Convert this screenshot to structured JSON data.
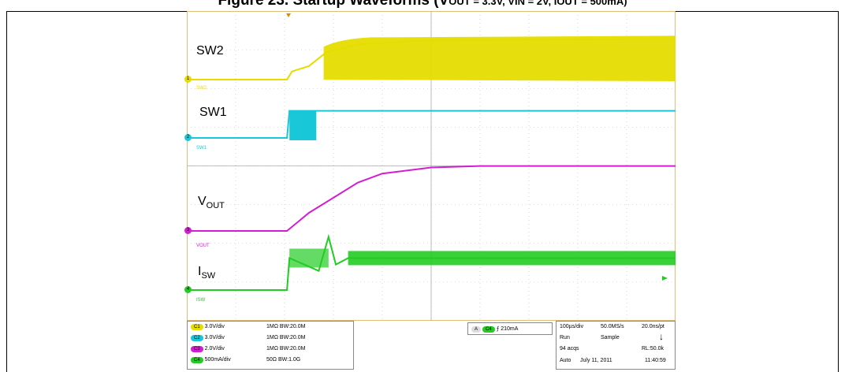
{
  "caption": "Figure 23. Startup Waveforms (V",
  "caption_rest": "OUT = 3.3V, VIN = 2V, IOUT = 500mA)",
  "chart_data": {
    "type": "line",
    "title": "",
    "xlabel": "",
    "ylabel": "",
    "time_div": "100µs/div",
    "x_divisions": 10,
    "y_divisions": 8,
    "grid": true,
    "series": [
      {
        "name": "SW2",
        "color": "#e6dc00",
        "scale": "3.0V/div",
        "label": "SW2",
        "t": [
          0,
          2.05,
          2.15,
          2.5,
          2.85,
          3.5,
          5,
          10
        ],
        "v_div": [
          0,
          0,
          0.3,
          0.5,
          1.0,
          1.3,
          1.45,
          1.5
        ],
        "burst_from": 2.8
      },
      {
        "name": "SW1",
        "color": "#19c8d8",
        "scale": "3.0V/div",
        "label": "SW1",
        "t": [
          0,
          2.05,
          2.1,
          2.6,
          2.65,
          10
        ],
        "v_div": [
          0,
          0,
          1.0,
          1.0,
          1.0,
          1.0
        ],
        "burst_from": 2.1,
        "burst_to": 2.65
      },
      {
        "name": "VOUT",
        "color": "#d21ed2",
        "scale": "2.0V/div",
        "label": "VOUT",
        "t": [
          0,
          2.05,
          2.5,
          3.0,
          3.5,
          4.0,
          5.0,
          6.0,
          10
        ],
        "v_div": [
          0,
          0,
          0.6,
          1.1,
          1.6,
          1.9,
          2.1,
          2.15,
          2.15
        ]
      },
      {
        "name": "ISW",
        "color": "#22cc22",
        "scale": "500mA/div",
        "label": "ISW",
        "t": [
          0,
          2.05,
          2.1,
          2.7,
          2.9,
          3.05,
          3.3,
          10
        ],
        "v_div": [
          0,
          0,
          1.5,
          0.9,
          2.5,
          1.2,
          1.5,
          1.5
        ]
      }
    ]
  },
  "labels": {
    "sw2": "SW2",
    "sw1": "SW1",
    "vout_main": "V",
    "vout_sub": "OUT",
    "isw_main": "I",
    "isw_sub": "SW",
    "m1": "1",
    "m2": "2",
    "m3": "3",
    "m4": "4",
    "t1": "SW2",
    "t2": "SW1",
    "t3": "VOUT",
    "t4": "ISW"
  },
  "channels": [
    {
      "chip": "C1",
      "color": "#e6dc00",
      "scale": "3.0V/div",
      "imp": "1MΩ",
      "bw": "BW:20.0M"
    },
    {
      "chip": "C2",
      "color": "#19c8d8",
      "scale": "3.0V/div",
      "imp": "1MΩ",
      "bw": "BW:20.0M"
    },
    {
      "chip": "C3",
      "color": "#d21ed2",
      "scale": "2.0V/div",
      "imp": "1MΩ",
      "bw": "BW:20.0M"
    },
    {
      "chip": "C4",
      "color": "#22cc22",
      "scale": "500mA/div",
      "imp": "50Ω",
      "bw": "BW:1.0G"
    }
  ],
  "trigger": {
    "a": "A",
    "chip": "C4",
    "slope": "⨍",
    "level": "210mA"
  },
  "acq": {
    "timebase": "100µs/div",
    "rate": "50.0MS/s",
    "res": "20.0ns/pt",
    "state": "Run",
    "mode": "Sample",
    "acqs": "94 acqs",
    "rl": "RL:50.0k",
    "auto": "Auto",
    "date": "July 11, 2011",
    "time": "11:40:59",
    "arrow": "↓"
  }
}
